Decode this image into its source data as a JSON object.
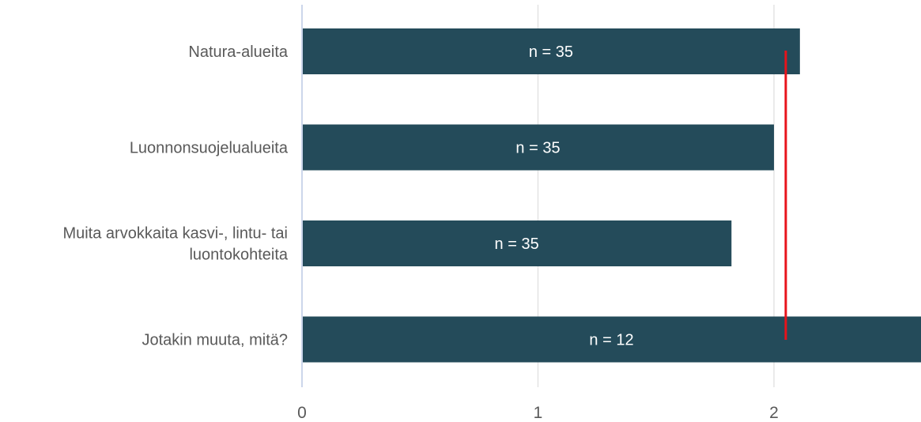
{
  "chart_data": {
    "type": "bar",
    "orientation": "horizontal",
    "categories": [
      [
        "Natura-alueita"
      ],
      [
        "Luonnonsuojelualueita"
      ],
      [
        "Muita arvokkaita kasvi-, lintu- tai",
        "luontokohteita"
      ],
      [
        "Jotakin muuta, mitä?"
      ]
    ],
    "values": [
      2.11,
      2.0,
      1.82,
      2.75
    ],
    "data_labels": [
      "n = 35",
      "n = 35",
      "n = 35",
      "n = 12"
    ],
    "xlim": [
      0,
      2.62
    ],
    "xticks": [
      "0",
      "1",
      "2"
    ],
    "reference_line": 2.05,
    "grid": true,
    "title": "",
    "xlabel": "",
    "ylabel": "",
    "colors": {
      "bar": "#244b5a",
      "reference_line": "#e8131b",
      "grid": "#e3e3e3",
      "axis": "#ccd6eb"
    }
  }
}
